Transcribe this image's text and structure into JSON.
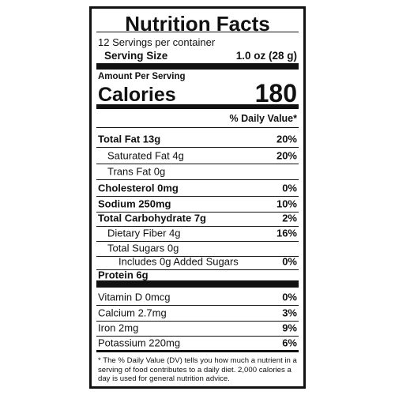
{
  "title": "Nutrition Facts",
  "servings": "12 Servings per container",
  "serving_size": {
    "label": "Serving Size",
    "value": "1.0 oz (28 g)"
  },
  "amount_per_serving": "Amount Per Serving",
  "calories": {
    "label": "Calories",
    "value": "180"
  },
  "daily_value_header": "% Daily Value*",
  "nutrients": [
    {
      "label": "Total Fat 13g",
      "dv": "20%"
    },
    {
      "label": "Saturated Fat 4g",
      "dv": "20%"
    },
    {
      "label": "Trans Fat 0g",
      "dv": null
    },
    {
      "label": "Cholesterol 0mg",
      "dv": "0%"
    },
    {
      "label": "Sodium 250mg",
      "dv": "10%"
    },
    {
      "label": "Total Carbohydrate 7g",
      "dv": "2%"
    },
    {
      "label": "Dietary Fiber  4g",
      "dv": "16%"
    },
    {
      "label": "Total Sugars 0g",
      "dv": null
    },
    {
      "label": "Includes 0g Added Sugars",
      "dv": "0%"
    },
    {
      "label": "Protein 6g",
      "dv": null
    }
  ],
  "vitamins": [
    {
      "label": "Vitamin D 0mcg",
      "dv": "0%"
    },
    {
      "label": "Calcium 2.7mg",
      "dv": "3%"
    },
    {
      "label": "Iron 2mg",
      "dv": "9%"
    },
    {
      "label": "Potassium 220mg",
      "dv": "6%"
    }
  ],
  "footnote": "* The % Daily Value (DV) tells you how much a nutrient in a serving of food contributes to a daily diet. 2,000 calories a day is used for general nutrition advice."
}
